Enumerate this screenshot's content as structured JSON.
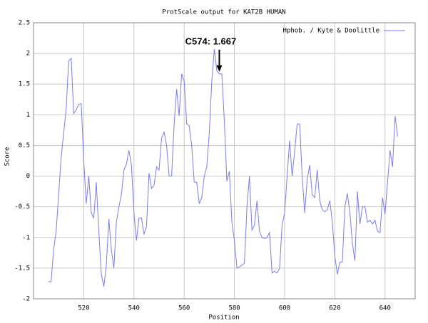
{
  "chart_data": {
    "type": "line",
    "title": "ProtScale output for KAT2B HUMAN",
    "x_label": "Position",
    "y_label": "Score",
    "xlim": [
      500,
      652
    ],
    "ylim": [
      -2,
      2.5
    ],
    "xticks": [
      520,
      540,
      560,
      580,
      600,
      620,
      640
    ],
    "yticks": [
      2.5,
      2,
      1.5,
      1,
      0.5,
      0,
      -0.5,
      -1,
      -1.5,
      -2
    ],
    "grid": true,
    "legend": "top-right",
    "x": [
      506,
      507,
      508,
      509,
      510,
      511,
      512,
      513,
      514,
      515,
      516,
      517,
      518,
      519,
      520,
      521,
      522,
      523,
      524,
      525,
      526,
      527,
      528,
      529,
      530,
      531,
      532,
      533,
      534,
      535,
      536,
      537,
      538,
      539,
      540,
      541,
      542,
      543,
      544,
      545,
      546,
      547,
      548,
      549,
      550,
      551,
      552,
      553,
      554,
      555,
      556,
      557,
      558,
      559,
      560,
      561,
      562,
      563,
      564,
      565,
      566,
      567,
      568,
      569,
      570,
      571,
      572,
      573,
      574,
      575,
      576,
      577,
      578,
      579,
      580,
      581,
      582,
      583,
      584,
      585,
      586,
      587,
      588,
      589,
      590,
      591,
      592,
      593,
      594,
      595,
      596,
      597,
      598,
      599,
      600,
      601,
      602,
      603,
      604,
      605,
      606,
      607,
      608,
      609,
      610,
      611,
      612,
      613,
      614,
      615,
      616,
      617,
      618,
      619,
      620,
      621,
      622,
      623,
      624,
      625,
      626,
      627,
      628,
      629,
      630,
      631,
      632,
      633,
      634,
      635,
      636,
      637,
      638,
      639,
      640,
      641,
      642,
      643,
      644,
      645
    ],
    "series": [
      {
        "name": "Hphob. / Kyte & Doolittle",
        "color": "#7b7bf0",
        "values": [
          -1.72,
          -1.72,
          -1.2,
          -0.9,
          -0.3,
          0.3,
          0.7,
          1.1,
          1.88,
          1.92,
          1.02,
          1.08,
          1.17,
          1.18,
          0.25,
          -0.45,
          0.0,
          -0.6,
          -0.68,
          -0.1,
          -0.9,
          -1.6,
          -1.8,
          -1.45,
          -0.7,
          -1.2,
          -1.5,
          -0.75,
          -0.5,
          -0.3,
          0.1,
          0.2,
          0.42,
          0.18,
          -0.6,
          -1.05,
          -0.68,
          -0.68,
          -0.95,
          -0.82,
          0.05,
          -0.2,
          -0.15,
          0.15,
          0.1,
          0.62,
          0.72,
          0.5,
          0.0,
          0.0,
          0.85,
          1.42,
          0.98,
          1.67,
          1.55,
          0.85,
          0.82,
          0.5,
          -0.1,
          -0.1,
          -0.45,
          -0.35,
          0.0,
          0.15,
          0.7,
          1.55,
          2.07,
          1.72,
          1.667,
          1.667,
          0.9,
          -0.08,
          0.08,
          -0.75,
          -1.05,
          -1.5,
          -1.48,
          -1.45,
          -1.42,
          -0.5,
          0.0,
          -0.88,
          -0.8,
          -0.4,
          -0.9,
          -1.0,
          -1.02,
          -1.0,
          -0.92,
          -1.58,
          -1.55,
          -1.58,
          -1.5,
          -0.8,
          -0.6,
          0.0,
          0.58,
          0.0,
          0.4,
          0.85,
          0.85,
          0.0,
          -0.6,
          -0.05,
          0.18,
          -0.3,
          -0.35,
          0.1,
          -0.4,
          -0.55,
          -0.58,
          -0.55,
          -0.4,
          -0.75,
          -1.3,
          -1.6,
          -1.4,
          -1.4,
          -0.5,
          -0.28,
          -0.6,
          -1.1,
          -1.38,
          -0.25,
          -0.78,
          -0.5,
          -0.5,
          -0.75,
          -0.72,
          -0.78,
          -0.72,
          -0.9,
          -0.92,
          -0.35,
          -0.62,
          -0.1,
          0.42,
          0.15,
          0.98,
          0.65
        ]
      }
    ],
    "annotation": {
      "text": "C574: 1.667",
      "x": 574,
      "y": 1.667
    }
  }
}
